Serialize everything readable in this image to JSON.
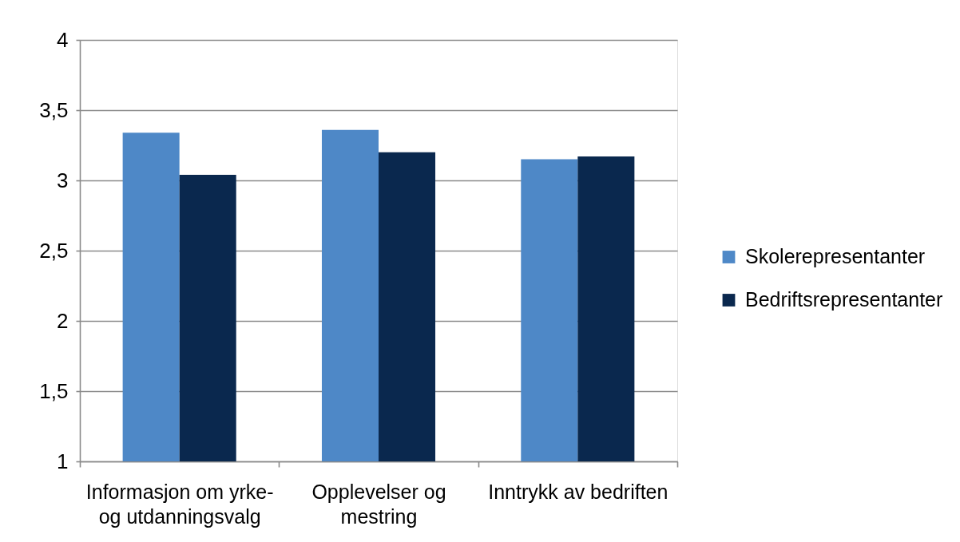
{
  "chart_data": {
    "type": "bar",
    "categories": [
      "Informasjon om yrke- og utdanningsvalg",
      "Opplevelser og mestring",
      "Inntrykk av bedriften"
    ],
    "series": [
      {
        "name": "Skolerepresentanter",
        "color": "#4e88c7",
        "values": [
          3.34,
          3.36,
          3.15
        ]
      },
      {
        "name": "Bedriftsrepresentanter",
        "color": "#0a284e",
        "values": [
          3.04,
          3.2,
          3.17
        ]
      }
    ],
    "ylim": [
      1,
      4
    ],
    "yticks": [
      1,
      {
        "value": 1.5,
        "label": "1,5"
      },
      2,
      {
        "value": 2.5,
        "label": "2,5"
      },
      3,
      {
        "value": 3.5,
        "label": "3,5"
      },
      4
    ],
    "grid": "y",
    "legend": "right"
  }
}
